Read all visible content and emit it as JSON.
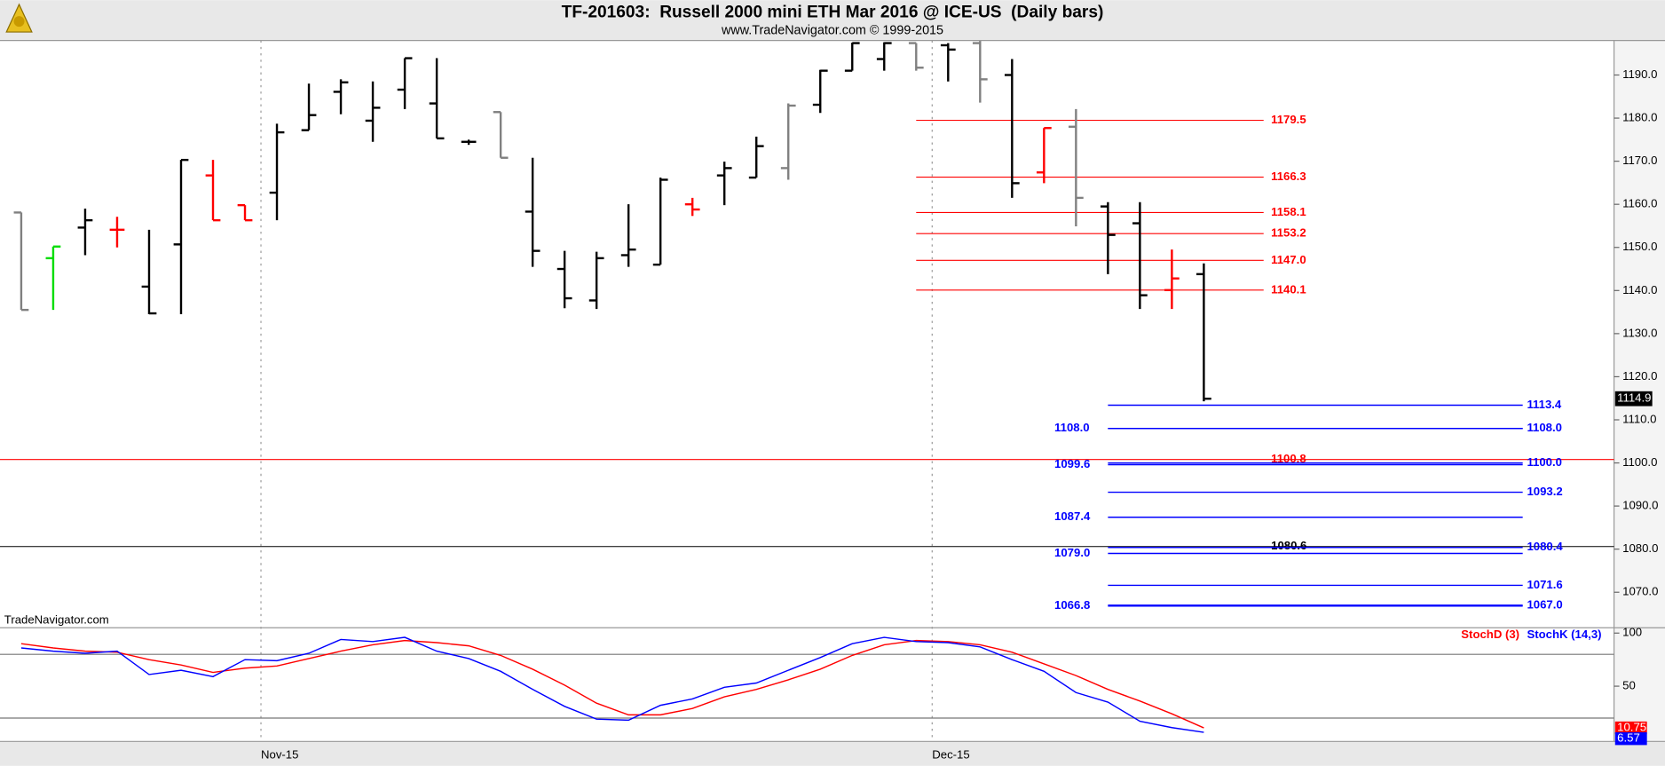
{
  "chart_data": [
    {
      "type": "ohlc",
      "title": "TF-201603:  Russell 2000 mini ETH Mar 2016 @ ICE-US  (Daily bars)",
      "subtitle": "www.TradeNavigator.com © 1999-2015",
      "watermark": "TradeNavigator.com",
      "categories": [
        null,
        null,
        null,
        null,
        null,
        null,
        null,
        null,
        "Nov-15",
        null,
        null,
        null,
        null,
        null,
        null,
        null,
        null,
        null,
        null,
        null,
        null,
        null,
        null,
        null,
        null,
        null,
        null,
        null,
        null,
        "Dec-15",
        null,
        null,
        null,
        null,
        null,
        null,
        null,
        null
      ],
      "open": [
        1158.1,
        1147.5,
        1154.6,
        1154.1,
        1140.9,
        1150.7,
        1166.7,
        1159.8,
        1162.7,
        1177.2,
        1186.1,
        1179.4,
        1186.6,
        1183.4,
        1174.5,
        1181.4,
        1158.3,
        1145.0,
        1137.7,
        1148.2,
        1146.0,
        1160.0,
        1166.7,
        1166.2,
        1168.4,
        1183.1,
        1191.0,
        1193.7,
        1197.4,
        1196.9,
        1197.4,
        1190.0,
        1167.4,
        1178.0,
        1159.5,
        1155.6,
        1140.1,
        1143.8
      ],
      "high": [
        1158.1,
        1150.2,
        1159.0,
        1157.1,
        1154.1,
        1170.3,
        1170.3,
        1159.8,
        1178.7,
        1188.0,
        1189.0,
        1188.5,
        1193.9,
        1193.9,
        1175.0,
        1181.4,
        1170.8,
        1149.2,
        1149.0,
        1160.0,
        1166.2,
        1161.5,
        1169.9,
        1175.7,
        1183.4,
        1191.2,
        1197.5,
        1197.6,
        1197.4,
        1197.4,
        1197.9,
        1193.7,
        1177.7,
        1182.1,
        1160.5,
        1160.5,
        1149.5,
        1146.3
      ],
      "low": [
        1135.5,
        1135.5,
        1148.2,
        1150.0,
        1134.5,
        1134.5,
        1156.3,
        1156.3,
        1156.3,
        1177.2,
        1180.9,
        1174.5,
        1182.1,
        1175.3,
        1173.8,
        1170.8,
        1145.5,
        1135.9,
        1135.7,
        1145.5,
        1146.0,
        1157.3,
        1159.8,
        1166.2,
        1165.7,
        1181.2,
        1191.0,
        1191.0,
        1191.0,
        1188.5,
        1183.6,
        1161.5,
        1164.9,
        1154.9,
        1143.8,
        1135.7,
        1135.7,
        1114.3
      ],
      "close": [
        1135.5,
        1150.2,
        1156.3,
        1154.1,
        1134.7,
        1170.3,
        1156.3,
        1156.3,
        1176.7,
        1180.7,
        1188.3,
        1182.4,
        1193.9,
        1175.3,
        1174.5,
        1170.8,
        1149.2,
        1138.2,
        1147.5,
        1149.5,
        1165.7,
        1158.8,
        1168.4,
        1173.5,
        1182.9,
        1191.0,
        1197.4,
        1197.4,
        1191.7,
        1195.9,
        1189.0,
        1164.9,
        1177.7,
        1161.5,
        1152.9,
        1138.9,
        1142.8,
        1114.9
      ],
      "colors": [
        "#808080",
        "#00dd00",
        "#000000",
        "#ff0000",
        "#000000",
        "#000000",
        "#ff0000",
        "#ff0000",
        "#000000",
        "#000000",
        "#000000",
        "#000000",
        "#000000",
        "#000000",
        "#000000",
        "#808080",
        "#000000",
        "#000000",
        "#000000",
        "#000000",
        "#000000",
        "#ff0000",
        "#000000",
        "#000000",
        "#808080",
        "#000000",
        "#000000",
        "#000000",
        "#808080",
        "#000000",
        "#808080",
        "#000000",
        "#ff0000",
        "#808080",
        "#000000",
        "#000000",
        "#ff0000",
        "#000000"
      ],
      "ylim": [
        1062,
        1198
      ],
      "yticks": [
        {
          "value": 1070,
          "label": "1070.0"
        },
        {
          "value": 1080,
          "label": "1080.0"
        },
        {
          "value": 1090,
          "label": "1090.0"
        },
        {
          "value": 1100,
          "label": "1100.0"
        },
        {
          "value": 1110,
          "label": "1110.0"
        },
        {
          "value": 1120,
          "label": "1120.0"
        },
        {
          "value": 1130,
          "label": "1130.0"
        },
        {
          "value": 1140,
          "label": "1140.0"
        },
        {
          "value": 1150,
          "label": "1150.0"
        },
        {
          "value": 1160,
          "label": "1160.0"
        },
        {
          "value": 1170,
          "label": "1170.0"
        },
        {
          "value": 1180,
          "label": "1180.0"
        },
        {
          "value": 1190,
          "label": "1190.0"
        }
      ],
      "levels": {
        "red": {
          "color": "#ff0000",
          "values": [
            1179.5,
            1166.3,
            1158.1,
            1153.2,
            1147.0,
            1140.1
          ],
          "value_labels": [
            "1179.5",
            "1166.3",
            "1158.1",
            "1153.2",
            "1147.0",
            "1140.1"
          ]
        },
        "red_full": {
          "color": "#ff0000",
          "values": [
            1100.8
          ],
          "value_labels": [
            "1100.8"
          ]
        },
        "black_full": {
          "color": "#000000",
          "values": [
            1080.6
          ],
          "value_labels": [
            "1080.6"
          ]
        },
        "blue_right": {
          "color": "#0000ff",
          "values": [
            1113.4,
            1108.0,
            1100.0,
            1093.2,
            1080.4,
            1071.6,
            1067.0
          ],
          "value_labels": [
            "1113.4",
            "1108.0",
            "1100.0",
            "1093.2",
            "1080.4",
            "1071.6",
            "1067.0"
          ]
        },
        "blue_left": {
          "color": "#0000ff",
          "values": [
            1108.0,
            1099.6,
            1087.4,
            1079.0,
            1066.8
          ],
          "value_labels": [
            "1108.0",
            "1099.6",
            "1087.4",
            "1079.0",
            "1066.8"
          ]
        }
      }
    },
    {
      "type": "line",
      "series": [
        {
          "name": "StochD (3)",
          "color": "#ff0000",
          "values": [
            90,
            86,
            83,
            82,
            75,
            70,
            63,
            67,
            69,
            76,
            83,
            89,
            93,
            91,
            88,
            79,
            66,
            51,
            34,
            23,
            23,
            29,
            40,
            47,
            56,
            66,
            79,
            89,
            93,
            92,
            89,
            82,
            71,
            60,
            47,
            36,
            24,
            10.75
          ]
        },
        {
          "name": "StochK (14,3)",
          "color": "#0000ff",
          "values": [
            86,
            83,
            81,
            83,
            61,
            65,
            59,
            75,
            74,
            81,
            94,
            92,
            96,
            83,
            76,
            64,
            47,
            31,
            19,
            18,
            32,
            38,
            49,
            53,
            65,
            77,
            90,
            96,
            92,
            91,
            87,
            75,
            64,
            44,
            35,
            17,
            11,
            6.57
          ]
        }
      ],
      "ylim": [
        -2,
        105
      ],
      "yticks": [
        50,
        100
      ],
      "hlines": [
        80,
        20
      ]
    }
  ]
}
